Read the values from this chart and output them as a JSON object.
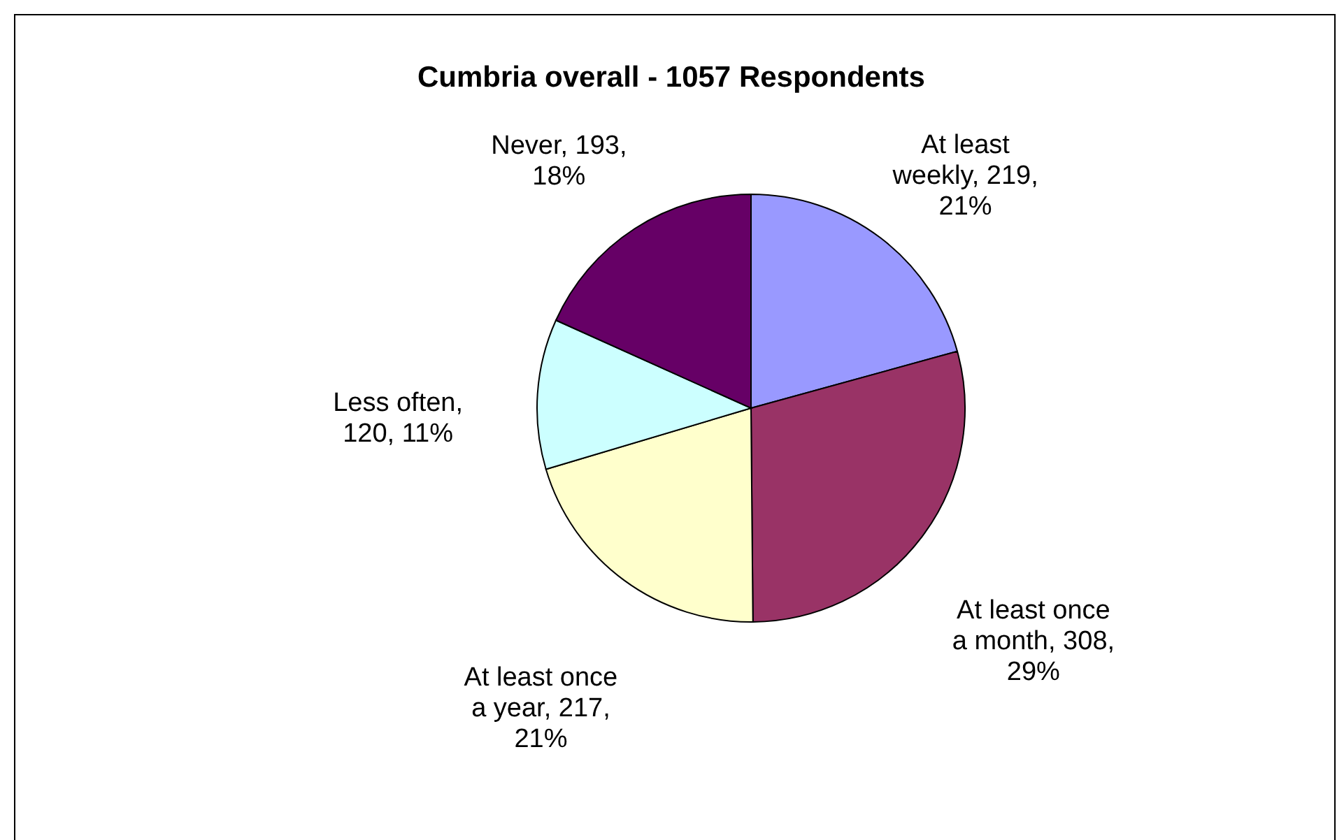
{
  "chart_data": {
    "type": "pie",
    "title": "Cumbria overall - 1057 Respondents",
    "categories": [
      "At least weekly, 219, 21%",
      "At least once a month, 308, 29%",
      "At least once a year, 217, 21%",
      "Less often, 120, 11%",
      "Never, 193, 18%"
    ],
    "values": [
      219,
      308,
      217,
      120,
      193
    ],
    "colors": [
      "#9999ff",
      "#993366",
      "#ffffcc",
      "#ccffff",
      "#660066"
    ]
  }
}
